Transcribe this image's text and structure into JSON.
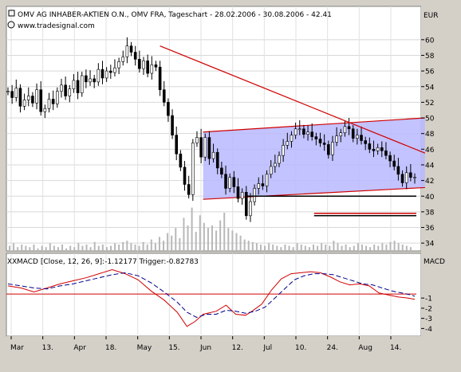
{
  "chart_data": [
    {
      "type": "candlestick",
      "title": "OMV AG INHABER-AKTIEN O.N., OMV FRA, Tageschart - 28.02.2006 - 30.08.2006 - 42.41",
      "source": "www.tradesignal.com",
      "currency_label": "EUR",
      "ylim": [
        33,
        61
      ],
      "yticks": [
        34,
        36,
        38,
        40,
        42,
        44,
        46,
        48,
        50,
        52,
        54,
        56,
        58,
        60
      ],
      "x_axis": {
        "ticks": [
          "Mar",
          "13.",
          "Apr",
          "18.",
          "May",
          "15.",
          "Jun",
          "12.",
          "Jul",
          "10.",
          "24.",
          "Aug",
          "14."
        ]
      },
      "close_path": [
        [
          0,
          53.4
        ],
        [
          4,
          52.6
        ],
        [
          8,
          53.8
        ],
        [
          12,
          51.5
        ],
        [
          16,
          52.3
        ],
        [
          20,
          52.8
        ],
        [
          24,
          51.9
        ],
        [
          28,
          53.6
        ],
        [
          32,
          50.8
        ],
        [
          36,
          51.2
        ],
        [
          40,
          52.4
        ],
        [
          44,
          51.8
        ],
        [
          48,
          53.4
        ],
        [
          52,
          54.2
        ],
        [
          56,
          52.8
        ],
        [
          60,
          53.7
        ],
        [
          64,
          54.8
        ],
        [
          68,
          53.2
        ],
        [
          72,
          55.4
        ],
        [
          76,
          54.6
        ],
        [
          80,
          55.0
        ],
        [
          84,
          54.6
        ],
        [
          88,
          56.2
        ],
        [
          92,
          55.1
        ],
        [
          96,
          56.0
        ],
        [
          100,
          55.8
        ],
        [
          104,
          56.4
        ],
        [
          108,
          57.2
        ],
        [
          112,
          57.8
        ],
        [
          116,
          59.2
        ],
        [
          120,
          58.4
        ],
        [
          124,
          57.5
        ],
        [
          128,
          56.3
        ],
        [
          132,
          57.3
        ],
        [
          136,
          55.7
        ],
        [
          140,
          56.8
        ],
        [
          144,
          56.5
        ],
        [
          148,
          53.6
        ],
        [
          152,
          52.0
        ],
        [
          156,
          50.3
        ],
        [
          160,
          47.8
        ],
        [
          164,
          45.4
        ],
        [
          168,
          43.7
        ],
        [
          172,
          41.5
        ],
        [
          176,
          40.2
        ],
        [
          180,
          46.8
        ],
        [
          184,
          47.5
        ],
        [
          188,
          45.0
        ],
        [
          192,
          47.5
        ],
        [
          196,
          44.8
        ],
        [
          200,
          45.6
        ],
        [
          204,
          43.6
        ],
        [
          208,
          42.8
        ],
        [
          212,
          41.0
        ],
        [
          216,
          42.4
        ],
        [
          220,
          41.2
        ],
        [
          224,
          39.7
        ],
        [
          228,
          40.5
        ],
        [
          232,
          37.5
        ],
        [
          236,
          39.3
        ],
        [
          240,
          41.0
        ],
        [
          244,
          41.6
        ],
        [
          248,
          41.3
        ],
        [
          252,
          42.8
        ],
        [
          256,
          43.8
        ],
        [
          260,
          44.2
        ],
        [
          264,
          45.2
        ],
        [
          268,
          46.5
        ],
        [
          272,
          47.0
        ],
        [
          276,
          47.8
        ],
        [
          280,
          48.6
        ],
        [
          284,
          48.6
        ],
        [
          288,
          47.9
        ],
        [
          292,
          48.2
        ],
        [
          296,
          47.6
        ],
        [
          300,
          47.3
        ],
        [
          304,
          46.8
        ],
        [
          308,
          46.6
        ],
        [
          312,
          45.3
        ],
        [
          316,
          46.9
        ],
        [
          320,
          47.7
        ],
        [
          324,
          48.1
        ],
        [
          328,
          48.9
        ],
        [
          332,
          48.6
        ],
        [
          336,
          47.4
        ],
        [
          340,
          47.8
        ],
        [
          344,
          47.1
        ],
        [
          348,
          46.7
        ],
        [
          352,
          46.0
        ],
        [
          356,
          45.8
        ],
        [
          360,
          46.2
        ],
        [
          364,
          45.8
        ],
        [
          368,
          45.2
        ],
        [
          372,
          44.5
        ],
        [
          376,
          43.8
        ],
        [
          380,
          42.8
        ],
        [
          384,
          41.7
        ],
        [
          388,
          43.0
        ],
        [
          392,
          42.4
        ],
        [
          396,
          42.41
        ]
      ],
      "volume": [
        4,
        6,
        3,
        5,
        4,
        3,
        5,
        2,
        4,
        3,
        6,
        4,
        3,
        5,
        2,
        4,
        3,
        6,
        4,
        5,
        3,
        7,
        4,
        5,
        3,
        4,
        6,
        5,
        7,
        8,
        6,
        5,
        4,
        7,
        5,
        9,
        6,
        11,
        8,
        14,
        12,
        18,
        10,
        26,
        20,
        34,
        15,
        28,
        22,
        18,
        20,
        16,
        24,
        30,
        18,
        16,
        14,
        12,
        9,
        8,
        7,
        6,
        5,
        4,
        6,
        5,
        4,
        3,
        5,
        4,
        3,
        6,
        5,
        4,
        3,
        5,
        4,
        6,
        5,
        4,
        8,
        6,
        4,
        5,
        3,
        4,
        6,
        5,
        4,
        3,
        5,
        4,
        6,
        5,
        7,
        8,
        6,
        5,
        4,
        3
      ],
      "annotations": [
        {
          "type": "trendline",
          "from": [
            148,
            59.2
          ],
          "to": [
            406,
            45.5
          ],
          "color": "#d00000"
        },
        {
          "type": "channel",
          "upper": [
            [
              190,
              48.2
            ],
            [
              406,
              50.0
            ]
          ],
          "lower": [
            [
              190,
              39.6
            ],
            [
              406,
              41.1
            ]
          ],
          "fill": "#b8b8ff",
          "line": "#d00000"
        },
        {
          "type": "hline",
          "value": 40.0,
          "from_x": 232,
          "color": "#000000"
        },
        {
          "type": "hline",
          "value": 37.5,
          "from_x": 298,
          "color": "#000000"
        },
        {
          "type": "hline",
          "value": 37.8,
          "from_x": 298,
          "color": "#d00000"
        }
      ]
    },
    {
      "type": "line",
      "title": "MACD [Close, 12, 26, 9]:-1.12177 Trigger:-0.82783",
      "axis_label": "MACD",
      "ylim": [
        -4.6,
        2.0
      ],
      "yticks": [
        -4,
        -3,
        -2,
        -1
      ],
      "zero_line": -0.6,
      "series": [
        {
          "name": "MACD",
          "color": "#d00000",
          "values": [
            [
              0,
              0.2
            ],
            [
              16,
              0.0
            ],
            [
              32,
              -0.4
            ],
            [
              48,
              0.0
            ],
            [
              64,
              0.4
            ],
            [
              80,
              0.7
            ],
            [
              96,
              1.0
            ],
            [
              112,
              1.4
            ],
            [
              128,
              1.8
            ],
            [
              144,
              1.4
            ],
            [
              160,
              0.8
            ],
            [
              176,
              -0.3
            ],
            [
              192,
              -1.2
            ],
            [
              208,
              -2.4
            ],
            [
              220,
              -3.8
            ],
            [
              230,
              -3.3
            ],
            [
              240,
              -2.6
            ],
            [
              256,
              -2.3
            ],
            [
              268,
              -1.7
            ],
            [
              280,
              -2.6
            ],
            [
              292,
              -2.7
            ],
            [
              300,
              -2.3
            ],
            [
              312,
              -1.6
            ],
            [
              324,
              -0.2
            ],
            [
              336,
              0.9
            ],
            [
              348,
              1.4
            ],
            [
              360,
              1.5
            ],
            [
              372,
              1.6
            ],
            [
              384,
              1.5
            ],
            [
              396,
              1.1
            ],
            [
              408,
              0.6
            ],
            [
              420,
              0.3
            ],
            [
              432,
              0.4
            ],
            [
              444,
              0.2
            ],
            [
              456,
              -0.5
            ],
            [
              468,
              -0.7
            ],
            [
              480,
              -0.9
            ],
            [
              492,
              -1.0
            ],
            [
              500,
              -1.12
            ]
          ]
        },
        {
          "name": "Trigger",
          "color": "#00008b",
          "values": [
            [
              0,
              0.4
            ],
            [
              16,
              0.2
            ],
            [
              32,
              0.0
            ],
            [
              48,
              -0.1
            ],
            [
              64,
              0.2
            ],
            [
              80,
              0.4
            ],
            [
              96,
              0.7
            ],
            [
              112,
              1.0
            ],
            [
              128,
              1.3
            ],
            [
              144,
              1.5
            ],
            [
              160,
              1.2
            ],
            [
              176,
              0.5
            ],
            [
              192,
              -0.4
            ],
            [
              208,
              -1.4
            ],
            [
              220,
              -2.4
            ],
            [
              232,
              -2.9
            ],
            [
              244,
              -2.6
            ],
            [
              256,
              -2.6
            ],
            [
              268,
              -2.2
            ],
            [
              280,
              -2.3
            ],
            [
              292,
              -2.5
            ],
            [
              304,
              -2.3
            ],
            [
              316,
              -1.9
            ],
            [
              328,
              -1.0
            ],
            [
              340,
              -0.1
            ],
            [
              352,
              0.8
            ],
            [
              364,
              1.2
            ],
            [
              376,
              1.4
            ],
            [
              388,
              1.4
            ],
            [
              400,
              1.3
            ],
            [
              412,
              1.0
            ],
            [
              424,
              0.7
            ],
            [
              436,
              0.4
            ],
            [
              448,
              0.3
            ],
            [
              460,
              0.0
            ],
            [
              472,
              -0.3
            ],
            [
              484,
              -0.5
            ],
            [
              496,
              -0.7
            ],
            [
              500,
              -0.83
            ]
          ]
        }
      ]
    }
  ]
}
